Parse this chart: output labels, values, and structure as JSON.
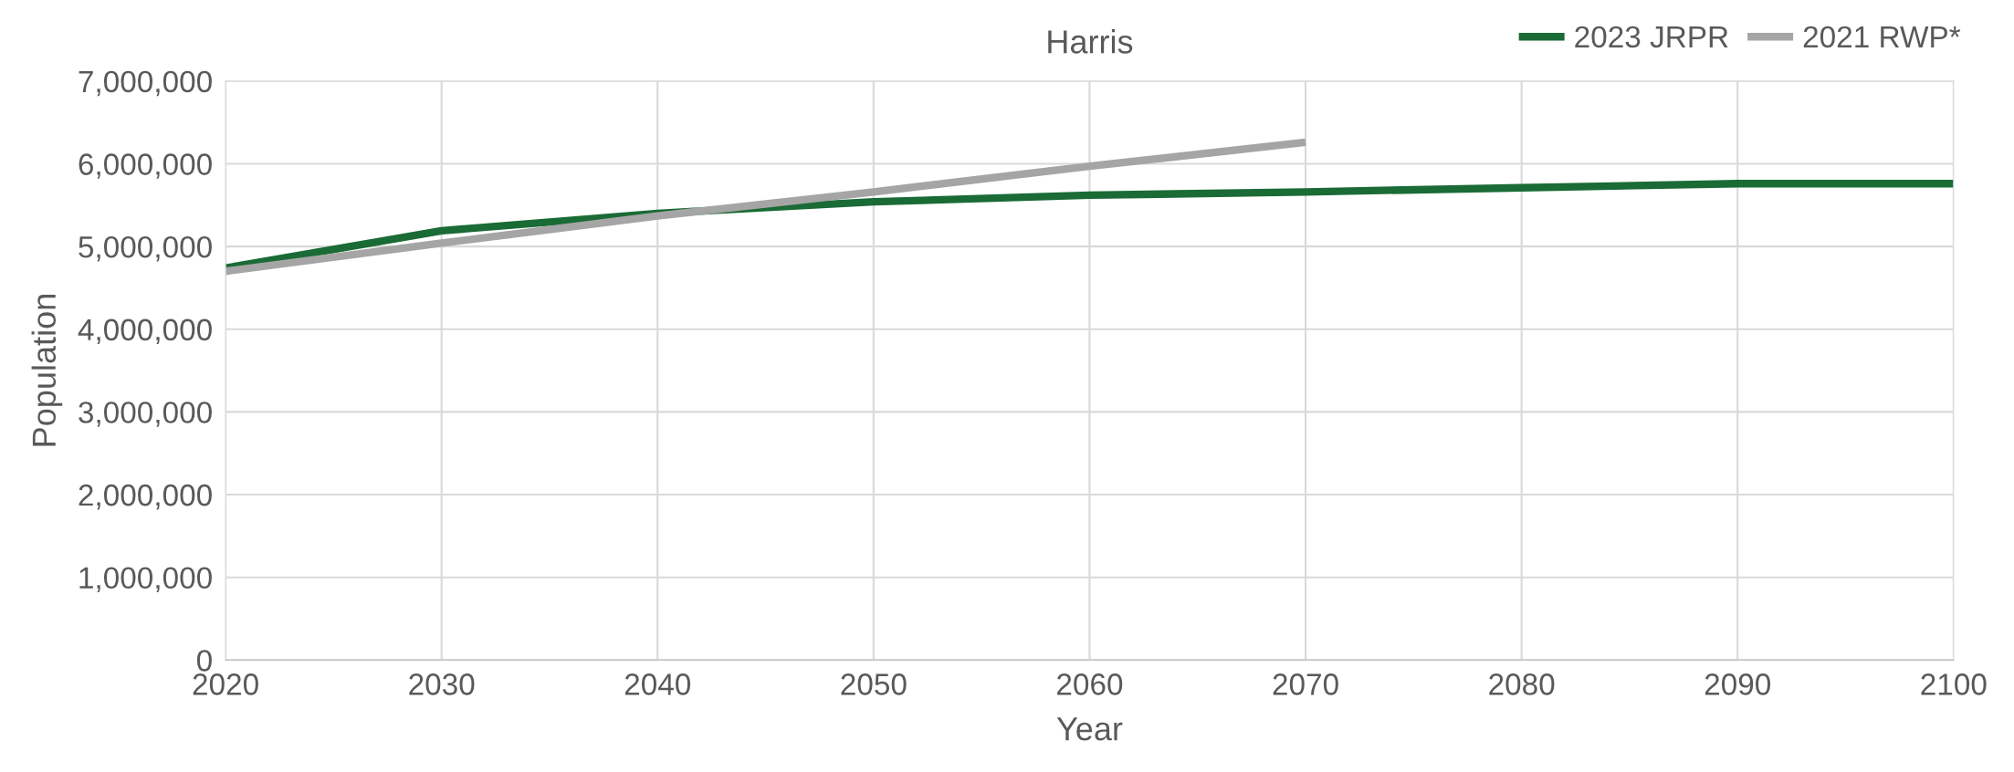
{
  "chart_data": {
    "type": "line",
    "title": "Harris",
    "xlabel": "Year",
    "ylabel": "Population",
    "x": [
      2020,
      2030,
      2040,
      2050,
      2060,
      2070,
      2080,
      2090,
      2100
    ],
    "series": [
      {
        "name": "2023 JRPR",
        "color": "#1a6b35",
        "values": [
          4740000,
          5190000,
          5400000,
          5540000,
          5620000,
          5660000,
          5710000,
          5760000,
          5760000
        ]
      },
      {
        "name": "2021 RWP*",
        "color": "#a5a5a5",
        "values": [
          4700000,
          5040000,
          5370000,
          5660000,
          5970000,
          6260000,
          null,
          null,
          null
        ]
      }
    ],
    "xlim": [
      2020,
      2100
    ],
    "xticks": [
      2020,
      2030,
      2040,
      2050,
      2060,
      2070,
      2080,
      2090,
      2100
    ],
    "ylim": [
      0,
      7000000
    ],
    "yticks": [
      {
        "value": 0,
        "label": "0"
      },
      {
        "value": 1000000,
        "label": "1,000,000"
      },
      {
        "value": 2000000,
        "label": "2,000,000"
      },
      {
        "value": 3000000,
        "label": "3,000,000"
      },
      {
        "value": 4000000,
        "label": "4,000,000"
      },
      {
        "value": 5000000,
        "label": "5,000,000"
      },
      {
        "value": 6000000,
        "label": "6,000,000"
      },
      {
        "value": 7000000,
        "label": "7,000,000"
      }
    ],
    "grid": true,
    "legend": "top right",
    "marker": "none",
    "line_style": "solid"
  }
}
